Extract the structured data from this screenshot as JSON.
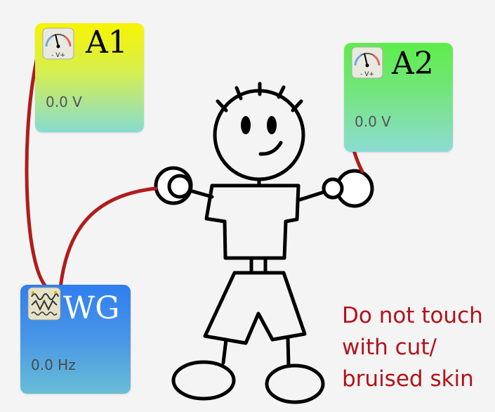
{
  "modules": {
    "a1": {
      "label": "A1",
      "reading": "0.0 V",
      "icon": "voltmeter-icon",
      "icon_text": "- V+"
    },
    "a2": {
      "label": "A2",
      "reading": "0.0 V",
      "icon": "voltmeter-icon",
      "icon_text": "- V+"
    },
    "wg": {
      "label": "WG",
      "reading": "0.0 Hz",
      "icon": "wave-generator-icon"
    }
  },
  "warning": "Do not touch\nwith cut/\nbruised skin",
  "colors": {
    "wire": "#b01c1c",
    "warning": "#b3121a",
    "a1_top": "#f8f400",
    "a2_top": "#5ded4a",
    "wg_top": "#2f7ef0"
  }
}
